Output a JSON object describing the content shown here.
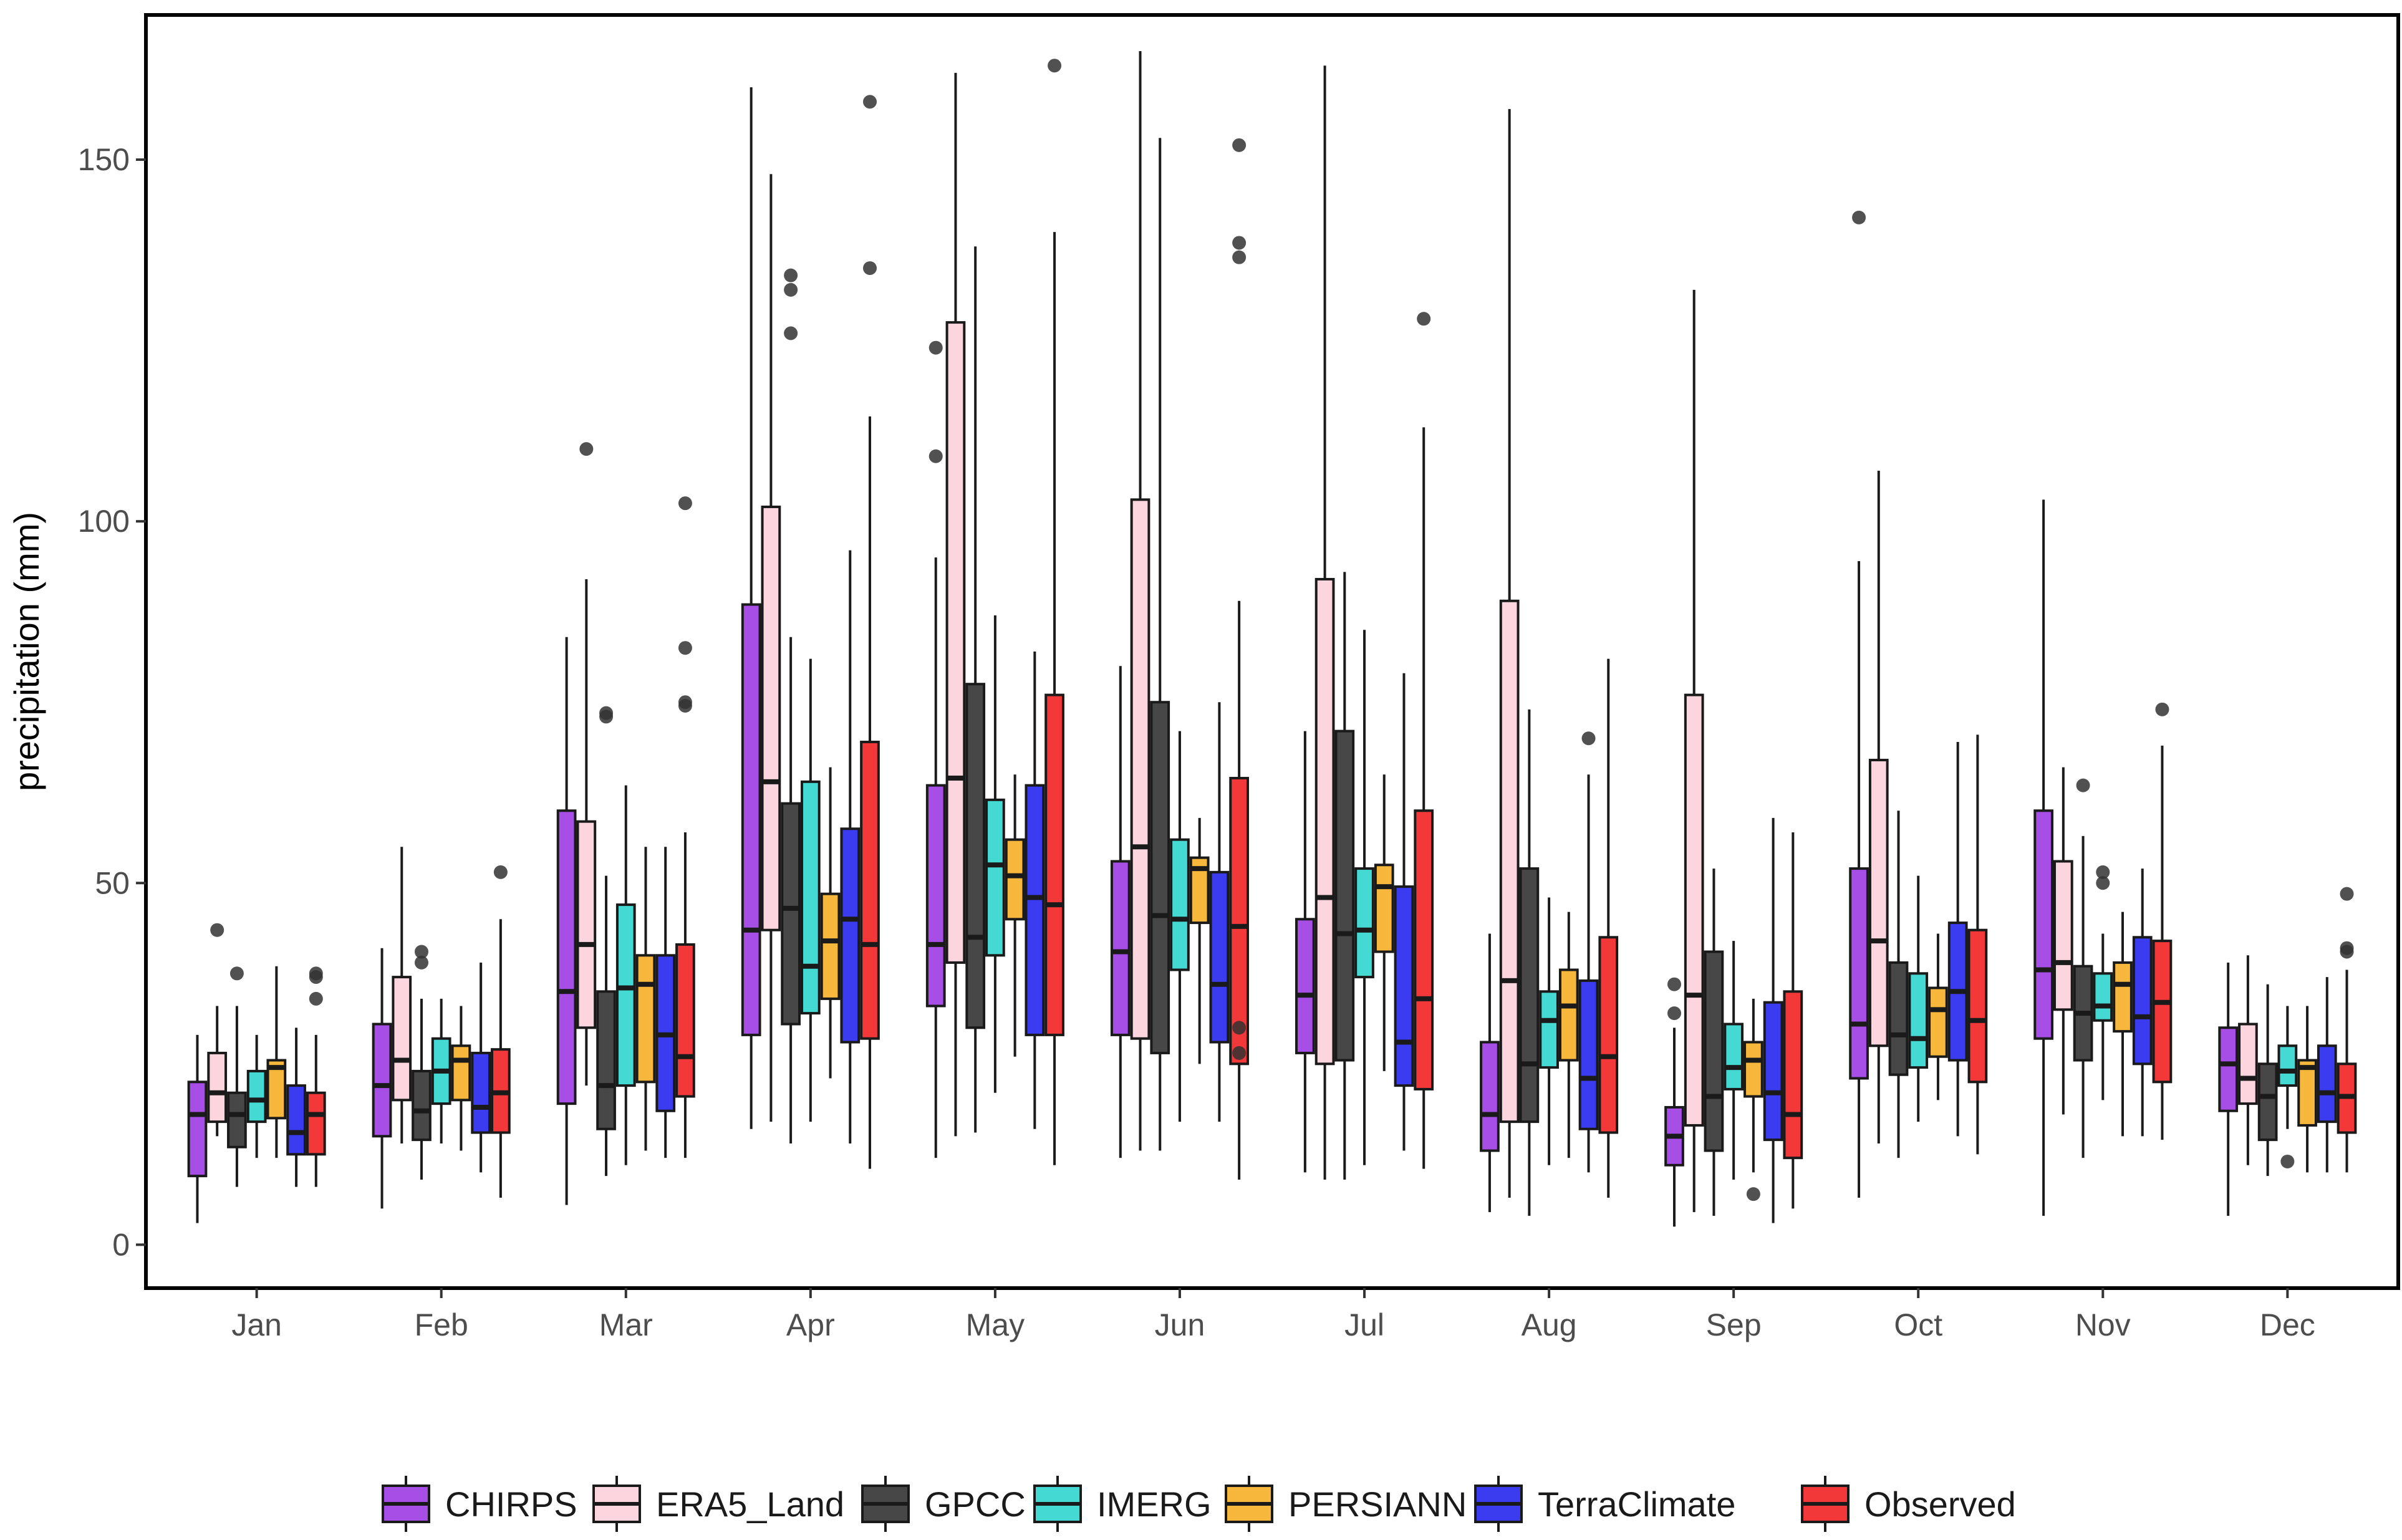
{
  "chart_data": {
    "type": "boxplot",
    "title": "",
    "xlabel": "",
    "ylabel": "precipitation (mm)",
    "ylim": [
      -6,
      170
    ],
    "yticks": [
      0,
      50,
      100,
      150
    ],
    "grid": false,
    "legend_position": "bottom",
    "categories": [
      "Jan",
      "Feb",
      "Mar",
      "Apr",
      "May",
      "Jun",
      "Jul",
      "Aug",
      "Sep",
      "Oct",
      "Nov",
      "Dec"
    ],
    "colors": {
      "CHIRPS": "#a64ee6",
      "ERA5_Land": "#fcd5de",
      "GPCC": "#474747",
      "IMERG": "#45d9d4",
      "PERSIANN": "#f6b73c",
      "TerraClimate": "#3b3bf0",
      "Observed": "#f23838"
    },
    "series": [
      {
        "name": "CHIRPS",
        "boxes": [
          {
            "min": 3,
            "q1": 9.5,
            "median": 18,
            "q3": 22.5,
            "max": 29,
            "outliers": []
          },
          {
            "min": 5,
            "q1": 15,
            "median": 22,
            "q3": 30.5,
            "max": 41,
            "outliers": []
          },
          {
            "min": 5.5,
            "q1": 19.5,
            "median": 35,
            "q3": 60,
            "max": 84,
            "outliers": []
          },
          {
            "min": 16,
            "q1": 29,
            "median": 43.5,
            "q3": 88.5,
            "max": 160,
            "outliers": []
          },
          {
            "min": 12,
            "q1": 33,
            "median": 41.5,
            "q3": 63.5,
            "max": 95,
            "outliers": [
              124,
              109
            ]
          },
          {
            "min": 12,
            "q1": 29,
            "median": 40.5,
            "q3": 53,
            "max": 80,
            "outliers": []
          },
          {
            "min": 10,
            "q1": 26.5,
            "median": 34.5,
            "q3": 45,
            "max": 71,
            "outliers": []
          },
          {
            "min": 4.5,
            "q1": 13,
            "median": 18,
            "q3": 28,
            "max": 43,
            "outliers": []
          },
          {
            "min": 2.5,
            "q1": 11,
            "median": 15,
            "q3": 19,
            "max": 30,
            "outliers": [
              36,
              32
            ]
          },
          {
            "min": 6.5,
            "q1": 23,
            "median": 30.5,
            "q3": 52,
            "max": 94.5,
            "outliers": [
              142
            ]
          },
          {
            "min": 4,
            "q1": 28.5,
            "median": 38,
            "q3": 60,
            "max": 103,
            "outliers": []
          },
          {
            "min": 4,
            "q1": 18.5,
            "median": 25,
            "q3": 30,
            "max": 39,
            "outliers": []
          }
        ]
      },
      {
        "name": "ERA5_Land",
        "boxes": [
          {
            "min": 15,
            "q1": 17,
            "median": 21,
            "q3": 26.5,
            "max": 33,
            "outliers": [
              43.5
            ]
          },
          {
            "min": 14,
            "q1": 20,
            "median": 25.5,
            "q3": 37,
            "max": 55,
            "outliers": []
          },
          {
            "min": 22,
            "q1": 30,
            "median": 41.5,
            "q3": 58.5,
            "max": 92,
            "outliers": [
              110
            ]
          },
          {
            "min": 17,
            "q1": 43.5,
            "median": 64,
            "q3": 102,
            "max": 148,
            "outliers": []
          },
          {
            "min": 15,
            "q1": 39,
            "median": 64.5,
            "q3": 127.5,
            "max": 162,
            "outliers": []
          },
          {
            "min": 13,
            "q1": 28.5,
            "median": 55,
            "q3": 103,
            "max": 165,
            "outliers": []
          },
          {
            "min": 9,
            "q1": 25,
            "median": 48,
            "q3": 92,
            "max": 163,
            "outliers": []
          },
          {
            "min": 6.5,
            "q1": 17,
            "median": 36.5,
            "q3": 89,
            "max": 157,
            "outliers": []
          },
          {
            "min": 4.5,
            "q1": 16.5,
            "median": 34.5,
            "q3": 76,
            "max": 132,
            "outliers": []
          },
          {
            "min": 14,
            "q1": 27.5,
            "median": 42,
            "q3": 67,
            "max": 107,
            "outliers": []
          },
          {
            "min": 18,
            "q1": 32.5,
            "median": 39,
            "q3": 53,
            "max": 66,
            "outliers": []
          },
          {
            "min": 11,
            "q1": 19.5,
            "median": 23,
            "q3": 30.5,
            "max": 40,
            "outliers": []
          }
        ]
      },
      {
        "name": "GPCC",
        "boxes": [
          {
            "min": 8,
            "q1": 13.5,
            "median": 18,
            "q3": 21,
            "max": 33,
            "outliers": [
              37.5
            ]
          },
          {
            "min": 9,
            "q1": 14.5,
            "median": 18.5,
            "q3": 24,
            "max": 34,
            "outliers": [
              39,
              40.5
            ]
          },
          {
            "min": 9.5,
            "q1": 16,
            "median": 22,
            "q3": 35,
            "max": 51,
            "outliers": [
              73,
              73.5
            ]
          },
          {
            "min": 14,
            "q1": 30.5,
            "median": 46.5,
            "q3": 61,
            "max": 84,
            "outliers": [
              126,
              132,
              134
            ]
          },
          {
            "min": 15.5,
            "q1": 30,
            "median": 42.5,
            "q3": 77.5,
            "max": 138,
            "outliers": []
          },
          {
            "min": 13,
            "q1": 26.5,
            "median": 45.5,
            "q3": 75,
            "max": 153,
            "outliers": []
          },
          {
            "min": 9,
            "q1": 25.5,
            "median": 43,
            "q3": 71,
            "max": 93,
            "outliers": []
          },
          {
            "min": 4,
            "q1": 17,
            "median": 25,
            "q3": 52,
            "max": 74,
            "outliers": []
          },
          {
            "min": 4,
            "q1": 13,
            "median": 20.5,
            "q3": 40.5,
            "max": 52,
            "outliers": []
          },
          {
            "min": 12,
            "q1": 23.5,
            "median": 29,
            "q3": 39,
            "max": 60,
            "outliers": []
          },
          {
            "min": 12,
            "q1": 25.5,
            "median": 32,
            "q3": 38.5,
            "max": 56.5,
            "outliers": [
              63.5
            ]
          },
          {
            "min": 9.5,
            "q1": 14.5,
            "median": 20.5,
            "q3": 25,
            "max": 36,
            "outliers": []
          }
        ]
      },
      {
        "name": "IMERG",
        "boxes": [
          {
            "min": 12,
            "q1": 17,
            "median": 20,
            "q3": 24,
            "max": 29,
            "outliers": []
          },
          {
            "min": 14,
            "q1": 19.5,
            "median": 24,
            "q3": 28.5,
            "max": 34,
            "outliers": []
          },
          {
            "min": 11,
            "q1": 22,
            "median": 35.5,
            "q3": 47,
            "max": 63.5,
            "outliers": []
          },
          {
            "min": 17,
            "q1": 32,
            "median": 38.5,
            "q3": 64,
            "max": 81,
            "outliers": []
          },
          {
            "min": 21,
            "q1": 40,
            "median": 52.5,
            "q3": 61.5,
            "max": 87,
            "outliers": []
          },
          {
            "min": 17,
            "q1": 38,
            "median": 45,
            "q3": 56,
            "max": 71,
            "outliers": []
          },
          {
            "min": 11,
            "q1": 37,
            "median": 43.5,
            "q3": 52,
            "max": 85,
            "outliers": []
          },
          {
            "min": 11,
            "q1": 24.5,
            "median": 31,
            "q3": 35,
            "max": 48,
            "outliers": []
          },
          {
            "min": 9,
            "q1": 21.5,
            "median": 24.5,
            "q3": 30.5,
            "max": 42,
            "outliers": []
          },
          {
            "min": 17,
            "q1": 24.5,
            "median": 28.5,
            "q3": 37.5,
            "max": 51,
            "outliers": []
          },
          {
            "min": 20,
            "q1": 31,
            "median": 33,
            "q3": 37.5,
            "max": 43,
            "outliers": [
              50,
              51.5
            ]
          },
          {
            "min": 16,
            "q1": 22,
            "median": 24,
            "q3": 27.5,
            "max": 33,
            "outliers": [
              11.5
            ]
          }
        ]
      },
      {
        "name": "PERSIANN",
        "boxes": [
          {
            "min": 12,
            "q1": 17.5,
            "median": 24.5,
            "q3": 25.5,
            "max": 38.5,
            "outliers": []
          },
          {
            "min": 13,
            "q1": 20,
            "median": 25.5,
            "q3": 27.5,
            "max": 33,
            "outliers": []
          },
          {
            "min": 13,
            "q1": 22.5,
            "median": 36,
            "q3": 40,
            "max": 55,
            "outliers": []
          },
          {
            "min": 23,
            "q1": 34,
            "median": 42,
            "q3": 48.5,
            "max": 66,
            "outliers": []
          },
          {
            "min": 26,
            "q1": 45,
            "median": 51,
            "q3": 56,
            "max": 65,
            "outliers": []
          },
          {
            "min": 25,
            "q1": 44.5,
            "median": 52,
            "q3": 53.5,
            "max": 59,
            "outliers": []
          },
          {
            "min": 24,
            "q1": 40.5,
            "median": 49.5,
            "q3": 52.5,
            "max": 65,
            "outliers": []
          },
          {
            "min": 12,
            "q1": 25.5,
            "median": 33,
            "q3": 38,
            "max": 46,
            "outliers": []
          },
          {
            "min": 10,
            "q1": 20.5,
            "median": 25.5,
            "q3": 28,
            "max": 34,
            "outliers": [
              7
            ]
          },
          {
            "min": 20,
            "q1": 26,
            "median": 32.5,
            "q3": 35.5,
            "max": 43,
            "outliers": []
          },
          {
            "min": 15,
            "q1": 29.5,
            "median": 36,
            "q3": 39,
            "max": 46,
            "outliers": []
          },
          {
            "min": 10,
            "q1": 16.5,
            "median": 24.5,
            "q3": 25.5,
            "max": 33,
            "outliers": []
          }
        ]
      },
      {
        "name": "TerraClimate",
        "boxes": [
          {
            "min": 8,
            "q1": 12.5,
            "median": 15.5,
            "q3": 22,
            "max": 30,
            "outliers": []
          },
          {
            "min": 10,
            "q1": 15.5,
            "median": 19,
            "q3": 26.5,
            "max": 39,
            "outliers": []
          },
          {
            "min": 12,
            "q1": 18.5,
            "median": 29,
            "q3": 40,
            "max": 55,
            "outliers": []
          },
          {
            "min": 14,
            "q1": 28,
            "median": 45,
            "q3": 57.5,
            "max": 96,
            "outliers": []
          },
          {
            "min": 16,
            "q1": 29,
            "median": 48,
            "q3": 63.5,
            "max": 82,
            "outliers": []
          },
          {
            "min": 17,
            "q1": 28,
            "median": 36,
            "q3": 51.5,
            "max": 75,
            "outliers": []
          },
          {
            "min": 13,
            "q1": 22,
            "median": 28,
            "q3": 49.5,
            "max": 79,
            "outliers": []
          },
          {
            "min": 10,
            "q1": 16,
            "median": 23,
            "q3": 36.5,
            "max": 65,
            "outliers": [
              70
            ]
          },
          {
            "min": 3,
            "q1": 14.5,
            "median": 21,
            "q3": 33.5,
            "max": 59,
            "outliers": []
          },
          {
            "min": 15,
            "q1": 25.5,
            "median": 35,
            "q3": 44.5,
            "max": 69.5,
            "outliers": []
          },
          {
            "min": 15,
            "q1": 25,
            "median": 31.5,
            "q3": 42.5,
            "max": 52,
            "outliers": []
          },
          {
            "min": 10,
            "q1": 17,
            "median": 21,
            "q3": 27.5,
            "max": 37,
            "outliers": []
          }
        ]
      },
      {
        "name": "Observed",
        "boxes": [
          {
            "min": 8,
            "q1": 12.5,
            "median": 18,
            "q3": 21,
            "max": 29,
            "outliers": [
              34,
              37,
              37.5
            ]
          },
          {
            "min": 6.5,
            "q1": 15.5,
            "median": 21,
            "q3": 27,
            "max": 45,
            "outliers": [
              51.5
            ]
          },
          {
            "min": 12,
            "q1": 20.5,
            "median": 26,
            "q3": 41.5,
            "max": 57,
            "outliers": [
              74.5,
              75,
              82.5,
              102.5
            ]
          },
          {
            "min": 10.5,
            "q1": 28.5,
            "median": 41.5,
            "q3": 69.5,
            "max": 114.5,
            "outliers": [
              135,
              158
            ]
          },
          {
            "min": 11,
            "q1": 29,
            "median": 47,
            "q3": 76,
            "max": 140,
            "outliers": [
              163
            ]
          },
          {
            "min": 9,
            "q1": 25,
            "median": 44,
            "q3": 64.5,
            "max": 89,
            "outliers": [
              26.5,
              30,
              136.5,
              138.5,
              152
            ]
          },
          {
            "min": 10.5,
            "q1": 21.5,
            "median": 34,
            "q3": 60,
            "max": 113,
            "outliers": [
              128
            ]
          },
          {
            "min": 6.5,
            "q1": 15.5,
            "median": 26,
            "q3": 42.5,
            "max": 81,
            "outliers": []
          },
          {
            "min": 5,
            "q1": 12,
            "median": 18,
            "q3": 35,
            "max": 57,
            "outliers": []
          },
          {
            "min": 12.5,
            "q1": 22.5,
            "median": 31,
            "q3": 43.5,
            "max": 70.5,
            "outliers": []
          },
          {
            "min": 14.5,
            "q1": 22.5,
            "median": 33.5,
            "q3": 42,
            "max": 69,
            "outliers": [
              74
            ]
          },
          {
            "min": 10,
            "q1": 15.5,
            "median": 20.5,
            "q3": 25,
            "max": 38,
            "outliers": [
              40.5,
              41,
              48.5
            ]
          }
        ]
      }
    ]
  }
}
